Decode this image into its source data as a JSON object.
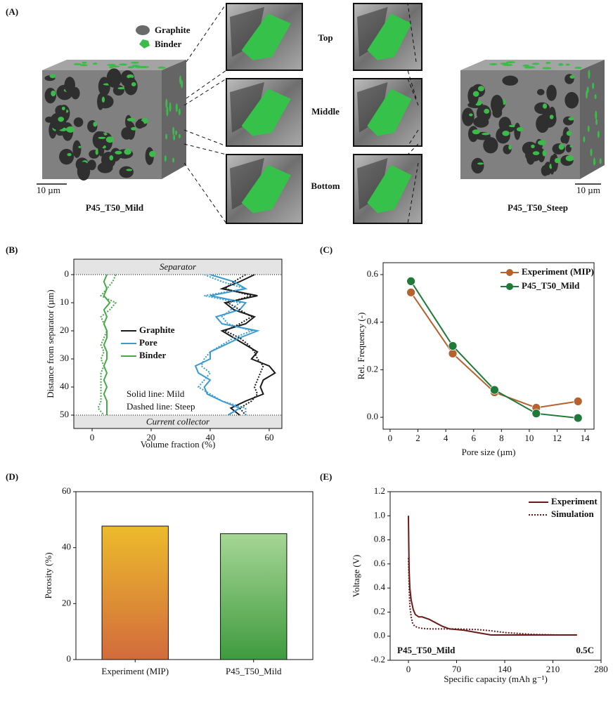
{
  "panel_a": {
    "label": "(A)",
    "legend": [
      "Graphite",
      "Binder"
    ],
    "positions": [
      "Top",
      "Middle",
      "Bottom"
    ],
    "scale_bar": "10 µm",
    "samples": [
      "P45_T50_Mild",
      "P45_T50_Steep"
    ]
  },
  "chart_data": [
    {
      "panel": "(B)",
      "type": "line",
      "y_label": "Distance from separator (µm)",
      "x_label": "Volume fraction (%)",
      "y": [
        0,
        2.5,
        5,
        7.5,
        10,
        12.5,
        15,
        17.5,
        20,
        22.5,
        25,
        27.5,
        30,
        32.5,
        35,
        37.5,
        40,
        42.5,
        45,
        47.5,
        50
      ],
      "series": [
        {
          "name": "Graphite",
          "color": "#1a1a1a",
          "dash": "solid",
          "values": [
            55,
            50,
            44,
            56,
            45,
            48,
            55,
            52,
            44,
            48,
            52,
            56,
            54,
            60,
            62,
            58,
            57,
            58,
            52,
            47,
            50
          ]
        },
        {
          "name": "Pore",
          "color": "#3a9bd0",
          "dash": "solid",
          "values": [
            40,
            48,
            52,
            40,
            52,
            50,
            42,
            44,
            56,
            50,
            45,
            40,
            40,
            35,
            36,
            40,
            38,
            39,
            44,
            50,
            46
          ]
        },
        {
          "name": "Binder",
          "color": "#4aa84a",
          "dash": "solid",
          "values": [
            5,
            4,
            5,
            4,
            6,
            4,
            5,
            4,
            5,
            5,
            4,
            5,
            5,
            4,
            5,
            4,
            5,
            4,
            5,
            5,
            5
          ]
        },
        {
          "name": "Graphite",
          "color": "#1a1a1a",
          "dash": "dotted",
          "values": [
            52,
            48,
            45,
            54,
            46,
            50,
            54,
            50,
            45,
            50,
            53,
            55,
            56,
            58,
            57,
            56,
            55,
            56,
            54,
            50,
            52
          ]
        },
        {
          "name": "Pore",
          "color": "#3a9bd0",
          "dash": "dotted",
          "values": [
            38,
            44,
            52,
            38,
            50,
            47,
            44,
            46,
            54,
            48,
            44,
            40,
            38,
            37,
            40,
            38,
            36,
            40,
            44,
            52,
            52
          ]
        },
        {
          "name": "Binder",
          "color": "#4aa84a",
          "dash": "dotted",
          "values": [
            8,
            7,
            5,
            3,
            8,
            6,
            3,
            4,
            5,
            4,
            3,
            4,
            3,
            4,
            3,
            3,
            3,
            3,
            3,
            2,
            4
          ]
        }
      ],
      "xlim": [
        -6.2,
        64.3
      ],
      "xticks": [
        0,
        20,
        40,
        60
      ],
      "ylim": [
        -5.5,
        54.75
      ],
      "yticks": [
        0,
        10,
        20,
        30,
        40,
        50
      ],
      "y_inverted": true,
      "band_labels": [
        "Separator",
        "Current collector"
      ],
      "annotations": [
        "Solid line: Mild",
        "Dashed line: Steep"
      ]
    },
    {
      "panel": "(C)",
      "type": "line",
      "markers": true,
      "x_label": "Pore size (µm)",
      "y_label": "Rel. Frequency (-)",
      "x": [
        1.5,
        4.5,
        7.5,
        10.5,
        13.5
      ],
      "series": [
        {
          "name": "Experiment (MIP)",
          "color": "#b5622e",
          "dash": "solid",
          "values": [
            0.525,
            0.268,
            0.105,
            0.04,
            0.067
          ]
        },
        {
          "name": "P45_T50_Mild",
          "color": "#1f7a3a",
          "dash": "solid",
          "values": [
            0.572,
            0.3,
            0.115,
            0.016,
            -0.003
          ]
        }
      ],
      "xlim": [
        -0.5,
        14.65
      ],
      "xticks": [
        0,
        2,
        4,
        6,
        8,
        10,
        12,
        14
      ],
      "ylim": [
        -0.05,
        0.65
      ],
      "yticks": [
        {
          "value": 0,
          "label": "0.0"
        },
        0.2,
        0.4,
        0.6
      ]
    },
    {
      "panel": "(D)",
      "type": "bar",
      "y_label": "Porosity (%)",
      "categories": [
        "Experiment (MIP)",
        "P45_T50_Mild"
      ],
      "values": [
        47.7,
        45
      ],
      "color_top": [
        "#ecbb2c",
        "#a6d695"
      ],
      "color_bottom": [
        "#d26b3c",
        "#3f9b3f"
      ],
      "ylim": [
        0,
        60
      ],
      "yticks": [
        0,
        20,
        40,
        60
      ]
    },
    {
      "panel": "(E)",
      "type": "line",
      "x_label": "Specific capacity (mAh g⁻¹)",
      "y_label": "Voltage (V)",
      "series": [
        {
          "name": "Experiment",
          "color": "#6b1a1a",
          "dash": "solid",
          "x": [
            0,
            0.5,
            1,
            2,
            4,
            7,
            10,
            15,
            20,
            30,
            40,
            50,
            60,
            70,
            80,
            100,
            120,
            140,
            180,
            220,
            245
          ],
          "values": [
            1.0,
            0.75,
            0.55,
            0.4,
            0.3,
            0.22,
            0.18,
            0.16,
            0.16,
            0.14,
            0.11,
            0.08,
            0.06,
            0.055,
            0.05,
            0.03,
            0.01,
            0.01,
            0.01,
            0.01,
            0.01
          ]
        },
        {
          "name": "Simulation",
          "color": "#6b1a1a",
          "dash": "dotted",
          "x": [
            0,
            1,
            2,
            4,
            6,
            8,
            10,
            15,
            20,
            30,
            50,
            70,
            100,
            120,
            140,
            180,
            220,
            245
          ],
          "values": [
            0.65,
            0.4,
            0.25,
            0.16,
            0.11,
            0.09,
            0.08,
            0.07,
            0.065,
            0.06,
            0.06,
            0.06,
            0.055,
            0.045,
            0.03,
            0.015,
            0.01,
            0.01
          ]
        }
      ],
      "xlim": [
        -26.6,
        280
      ],
      "xticks": [
        0,
        70,
        140,
        210,
        280
      ],
      "ylim": [
        -0.2,
        1.2
      ],
      "yticks": [
        -0.2,
        {
          "value": 0,
          "label": "0.0"
        },
        0.2,
        0.4,
        0.6,
        0.8,
        {
          "value": 1,
          "label": "1.0"
        },
        1.2
      ],
      "annotations": [
        "P45_T50_Mild",
        "0.5C"
      ]
    }
  ]
}
